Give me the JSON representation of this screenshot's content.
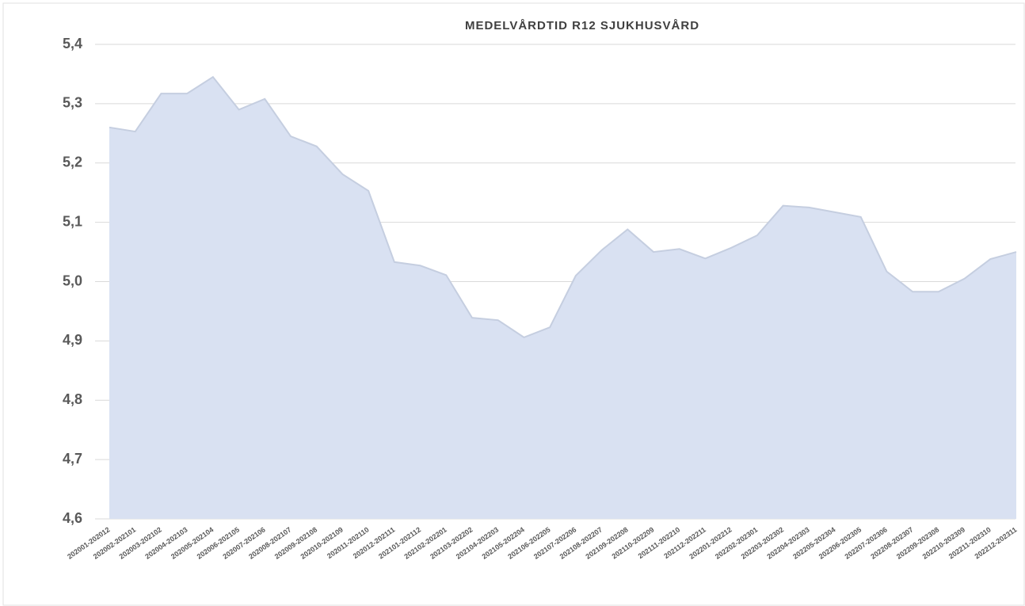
{
  "chart_data": {
    "type": "area",
    "title": "MEDELVÅRDTID R12 SJUKHUSVÅRD",
    "categories": [
      "202001-202012",
      "202002-202101",
      "202003-202102",
      "202004-202103",
      "202005-202104",
      "202006-202105",
      "202007-202106",
      "202008-202107",
      "202009-202108",
      "202010-202109",
      "202011-202110",
      "202012-202111",
      "202101-202112",
      "202102-202201",
      "202103-202202",
      "202104-202203",
      "202105-202204",
      "202106-202205",
      "202107-202206",
      "202108-202207",
      "202109-202208",
      "202110-202209",
      "202111-202210",
      "202112-202211",
      "202201-202212",
      "202202-202301",
      "202203-202302",
      "202204-202303",
      "202205-202304",
      "202206-202305",
      "202207-202306",
      "202208-202307",
      "202209-202308",
      "202210-202309",
      "202211-202310",
      "202212-202311"
    ],
    "values": [
      5.26,
      5.253,
      5.317,
      5.317,
      5.345,
      5.29,
      5.308,
      5.245,
      5.228,
      5.181,
      5.153,
      5.033,
      5.027,
      5.011,
      4.939,
      4.935,
      4.906,
      4.923,
      5.01,
      5.053,
      5.088,
      5.05,
      5.055,
      5.039,
      5.057,
      5.078,
      5.128,
      5.125,
      5.117,
      5.109,
      5.017,
      4.983,
      4.983,
      5.005,
      5.038,
      5.05
    ],
    "color": "#d9e1f2",
    "line_color": "#c5cee0",
    "ylim": [
      4.6,
      5.4
    ],
    "yticks": [
      {
        "value": 4.6,
        "label": "4,6"
      },
      {
        "value": 4.7,
        "label": "4,7"
      },
      {
        "value": 4.8,
        "label": "4,8"
      },
      {
        "value": 4.9,
        "label": "4,9"
      },
      {
        "value": 5.0,
        "label": "5,0"
      },
      {
        "value": 5.1,
        "label": "5,1"
      },
      {
        "value": 5.2,
        "label": "5,2"
      },
      {
        "value": 5.3,
        "label": "5,3"
      },
      {
        "value": 5.4,
        "label": "5,4"
      }
    ],
    "grid": true
  }
}
